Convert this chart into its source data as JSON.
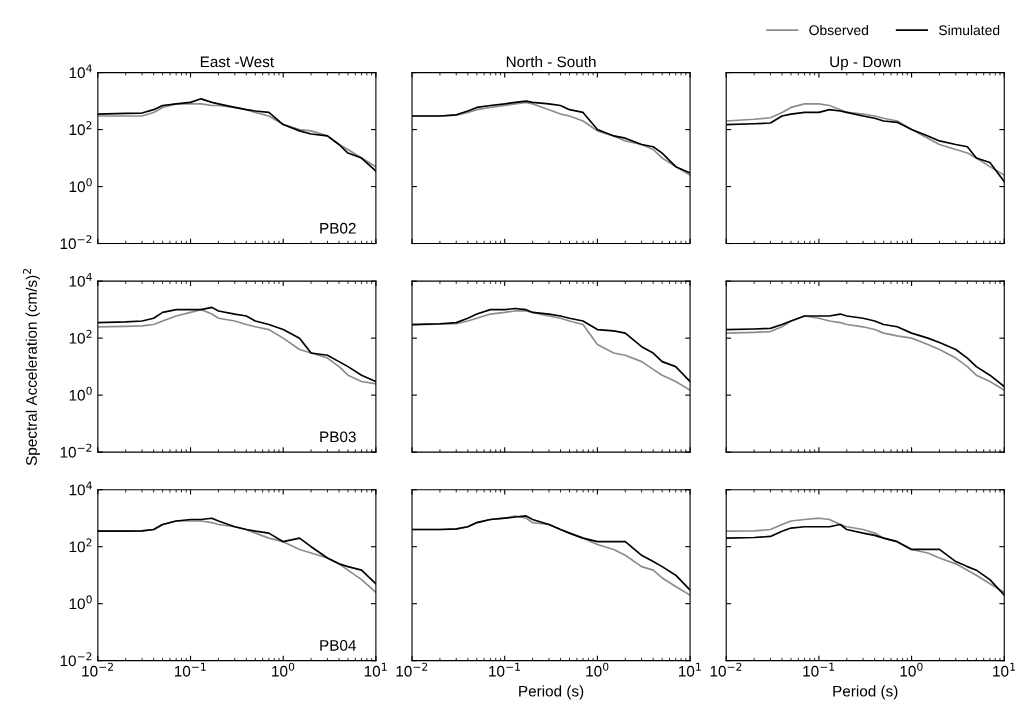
{
  "chart_data": [
    {
      "type": "line",
      "title": "East -West",
      "log": "xy",
      "x": [
        0.01,
        0.02,
        0.03,
        0.04,
        0.05,
        0.07,
        0.1,
        0.13,
        0.17,
        0.2,
        0.3,
        0.4,
        0.5,
        0.7,
        1,
        1.5,
        2,
        3,
        4,
        5,
        7,
        10
      ],
      "xlim": [
        0.01,
        10
      ],
      "ylim": [
        0.01,
        10000
      ],
      "xticks": [
        0.01,
        0.1,
        1,
        10
      ],
      "yticks": [
        {
          "value": 0.01,
          "label": "10$^{−2}$"
        },
        {
          "value": 1,
          "label": "10$^{0}$"
        },
        {
          "value": 100,
          "label": "10$^{2}$"
        },
        {
          "value": 10000,
          "label": "10$^{4}$"
        }
      ],
      "tick_labels": "y",
      "annotations": [
        "PB02"
      ],
      "series": [
        {
          "color": "#8c8c8c",
          "values": [
            300,
            300,
            300,
            400,
            600,
            800,
            800,
            800,
            700,
            700,
            600,
            500,
            400,
            300,
            150,
            100,
            90,
            60,
            30,
            20,
            10,
            5
          ]
        },
        {
          "color": "#000000",
          "values": [
            350,
            370,
            380,
            500,
            700,
            800,
            900,
            1200,
            900,
            800,
            600,
            500,
            450,
            400,
            150,
            90,
            70,
            60,
            30,
            15,
            10,
            3.5
          ]
        }
      ]
    },
    {
      "type": "line",
      "title": "North - South",
      "log": "xy",
      "x": [
        0.01,
        0.02,
        0.03,
        0.04,
        0.05,
        0.07,
        0.1,
        0.13,
        0.17,
        0.2,
        0.3,
        0.4,
        0.5,
        0.7,
        1,
        1.5,
        2,
        3,
        4,
        5,
        7,
        10
      ],
      "xlim": [
        0.01,
        10
      ],
      "ylim": [
        0.01,
        10000
      ],
      "xticks": [
        0.01,
        0.1,
        1,
        10
      ],
      "yticks": [
        0.01,
        1,
        100,
        10000
      ],
      "tick_labels": false,
      "series": [
        {
          "color": "#8c8c8c",
          "values": [
            300,
            300,
            320,
            400,
            500,
            600,
            700,
            800,
            900,
            800,
            500,
            350,
            300,
            200,
            90,
            60,
            40,
            30,
            20,
            10,
            5,
            2.5
          ]
        },
        {
          "color": "#000000",
          "values": [
            300,
            300,
            330,
            450,
            600,
            700,
            800,
            900,
            1000,
            900,
            800,
            700,
            500,
            400,
            100,
            60,
            50,
            30,
            25,
            15,
            5,
            3
          ]
        }
      ]
    },
    {
      "type": "line",
      "title": "Up - Down",
      "log": "xy",
      "legend": "top right",
      "x": [
        0.01,
        0.02,
        0.03,
        0.04,
        0.05,
        0.07,
        0.1,
        0.13,
        0.17,
        0.2,
        0.3,
        0.4,
        0.5,
        0.7,
        1,
        1.5,
        2,
        3,
        4,
        5,
        7,
        10
      ],
      "xlim": [
        0.01,
        10
      ],
      "ylim": [
        0.01,
        10000
      ],
      "xticks": [
        0.01,
        0.1,
        1,
        10
      ],
      "yticks": [
        0.01,
        1,
        100,
        10000
      ],
      "tick_labels": false,
      "series": [
        {
          "name": "Observed",
          "color": "#8c8c8c",
          "values": [
            200,
            230,
            260,
            400,
            600,
            800,
            800,
            700,
            500,
            400,
            350,
            300,
            250,
            200,
            100,
            50,
            30,
            20,
            15,
            10,
            5,
            2.5
          ]
        },
        {
          "name": "Simulated",
          "color": "#000000",
          "values": [
            150,
            160,
            170,
            300,
            350,
            400,
            400,
            500,
            450,
            400,
            300,
            250,
            200,
            180,
            100,
            60,
            40,
            30,
            25,
            10,
            7,
            1.5
          ]
        }
      ]
    },
    {
      "type": "line",
      "ylabel": "Spectral Acceleration (cm/s)$^{2}$",
      "log": "xy",
      "x": [
        0.01,
        0.02,
        0.03,
        0.04,
        0.05,
        0.07,
        0.1,
        0.13,
        0.17,
        0.2,
        0.3,
        0.4,
        0.5,
        0.7,
        1,
        1.5,
        2,
        3,
        4,
        5,
        7,
        10
      ],
      "xlim": [
        0.01,
        10
      ],
      "ylim": [
        0.01,
        10000
      ],
      "xticks": [
        0.01,
        0.1,
        1,
        10
      ],
      "yticks": [
        {
          "value": 0.01,
          "label": "10$^{−2}$"
        },
        {
          "value": 1,
          "label": "10$^{0}$"
        },
        {
          "value": 100,
          "label": "10$^{2}$"
        },
        {
          "value": 10000,
          "label": "10$^{4}$"
        }
      ],
      "tick_labels": "y",
      "annotations": [
        "PB03"
      ],
      "series": [
        {
          "color": "#8c8c8c",
          "values": [
            250,
            260,
            270,
            300,
            400,
            600,
            800,
            1000,
            700,
            500,
            400,
            300,
            250,
            200,
            100,
            40,
            30,
            20,
            10,
            5,
            3,
            2.5
          ]
        },
        {
          "color": "#000000",
          "values": [
            350,
            370,
            400,
            500,
            800,
            1000,
            1000,
            1000,
            1200,
            900,
            700,
            600,
            400,
            300,
            200,
            100,
            30,
            25,
            15,
            10,
            5,
            3
          ]
        }
      ]
    },
    {
      "type": "line",
      "log": "xy",
      "x": [
        0.01,
        0.02,
        0.03,
        0.04,
        0.05,
        0.07,
        0.1,
        0.13,
        0.17,
        0.2,
        0.3,
        0.4,
        0.5,
        0.7,
        1,
        1.5,
        2,
        3,
        4,
        5,
        7,
        10
      ],
      "xlim": [
        0.01,
        10
      ],
      "ylim": [
        0.01,
        10000
      ],
      "xticks": [
        0.01,
        0.1,
        1,
        10
      ],
      "yticks": [
        0.01,
        1,
        100,
        10000
      ],
      "tick_labels": false,
      "series": [
        {
          "color": "#8c8c8c",
          "values": [
            300,
            310,
            320,
            400,
            500,
            700,
            800,
            900,
            900,
            800,
            600,
            500,
            400,
            300,
            60,
            30,
            25,
            15,
            8,
            5,
            3,
            1.5
          ]
        },
        {
          "color": "#000000",
          "values": [
            300,
            320,
            350,
            500,
            700,
            1000,
            1000,
            1100,
            1000,
            800,
            700,
            600,
            500,
            400,
            200,
            180,
            150,
            50,
            30,
            15,
            10,
            3
          ]
        }
      ]
    },
    {
      "type": "line",
      "log": "xy",
      "x": [
        0.01,
        0.02,
        0.03,
        0.04,
        0.05,
        0.07,
        0.1,
        0.13,
        0.17,
        0.2,
        0.3,
        0.4,
        0.5,
        0.7,
        1,
        1.5,
        2,
        3,
        4,
        5,
        7,
        10
      ],
      "xlim": [
        0.01,
        10
      ],
      "ylim": [
        0.01,
        10000
      ],
      "xticks": [
        0.01,
        0.1,
        1,
        10
      ],
      "yticks": [
        0.01,
        1,
        100,
        10000
      ],
      "tick_labels": false,
      "series": [
        {
          "color": "#8c8c8c",
          "values": [
            150,
            160,
            170,
            250,
            400,
            600,
            500,
            400,
            350,
            300,
            250,
            200,
            150,
            120,
            100,
            60,
            40,
            20,
            10,
            5,
            3,
            1.5
          ]
        },
        {
          "color": "#000000",
          "values": [
            200,
            210,
            220,
            300,
            400,
            600,
            600,
            600,
            700,
            600,
            500,
            400,
            300,
            250,
            150,
            100,
            70,
            40,
            20,
            10,
            5,
            2
          ]
        }
      ]
    },
    {
      "type": "line",
      "log": "xy",
      "x": [
        0.01,
        0.02,
        0.03,
        0.04,
        0.05,
        0.07,
        0.1,
        0.13,
        0.17,
        0.2,
        0.3,
        0.4,
        0.5,
        0.7,
        1,
        1.5,
        2,
        3,
        4,
        5,
        7,
        10
      ],
      "xlim": [
        0.01,
        10
      ],
      "ylim": [
        0.01,
        10000
      ],
      "xticks": [
        {
          "value": 0.01,
          "label": "10$^{−2}$"
        },
        {
          "value": 0.1,
          "label": "10$^{−1}$"
        },
        {
          "value": 1,
          "label": "10$^{0}$"
        },
        {
          "value": 10,
          "label": "10$^{1}$"
        }
      ],
      "yticks": [
        {
          "value": 0.01,
          "label": "10$^{−2}$"
        },
        {
          "value": 1,
          "label": "10$^{0}$"
        },
        {
          "value": 100,
          "label": "10$^{2}$"
        },
        {
          "value": 10000,
          "label": "10$^{4}$"
        }
      ],
      "annotations": [
        "PB04"
      ],
      "series": [
        {
          "color": "#8c8c8c",
          "values": [
            350,
            350,
            360,
            400,
            600,
            800,
            800,
            800,
            700,
            600,
            500,
            400,
            300,
            200,
            150,
            80,
            60,
            40,
            25,
            15,
            7,
            2.5
          ]
        },
        {
          "color": "#000000",
          "values": [
            350,
            350,
            360,
            400,
            600,
            800,
            900,
            900,
            1000,
            800,
            500,
            400,
            350,
            300,
            150,
            200,
            100,
            40,
            25,
            20,
            15,
            5
          ]
        }
      ]
    },
    {
      "type": "line",
      "xlabel": "Period (s)",
      "log": "xy",
      "x": [
        0.01,
        0.02,
        0.03,
        0.04,
        0.05,
        0.07,
        0.1,
        0.13,
        0.17,
        0.2,
        0.3,
        0.4,
        0.5,
        0.7,
        1,
        1.5,
        2,
        3,
        4,
        5,
        7,
        10
      ],
      "xlim": [
        0.01,
        10
      ],
      "ylim": [
        0.01,
        10000
      ],
      "xticks": [
        {
          "value": 0.01,
          "label": "10$^{−2}$"
        },
        {
          "value": 0.1,
          "label": "10$^{−1}$"
        },
        {
          "value": 1,
          "label": "10$^{0}$"
        },
        {
          "value": 10,
          "label": "10$^{1}$"
        }
      ],
      "yticks": [
        0.01,
        1,
        100,
        10000
      ],
      "tick_labels": "x",
      "series": [
        {
          "color": "#8c8c8c",
          "values": [
            400,
            400,
            410,
            500,
            700,
            900,
            1000,
            1200,
            1000,
            700,
            600,
            400,
            300,
            200,
            120,
            80,
            50,
            20,
            15,
            8,
            4,
            2
          ]
        },
        {
          "color": "#000000",
          "values": [
            400,
            400,
            420,
            500,
            700,
            900,
            1000,
            1100,
            1200,
            900,
            600,
            400,
            300,
            200,
            150,
            150,
            150,
            50,
            30,
            20,
            10,
            3
          ]
        }
      ]
    },
    {
      "type": "line",
      "xlabel": "Period (s)",
      "log": "xy",
      "x": [
        0.01,
        0.02,
        0.03,
        0.04,
        0.05,
        0.07,
        0.1,
        0.13,
        0.17,
        0.2,
        0.3,
        0.4,
        0.5,
        0.7,
        1,
        1.5,
        2,
        3,
        4,
        5,
        7,
        10
      ],
      "xlim": [
        0.01,
        10
      ],
      "ylim": [
        0.01,
        10000
      ],
      "xticks": [
        {
          "value": 0.01,
          "label": "10$^{−2}$"
        },
        {
          "value": 0.1,
          "label": "10$^{−1}$"
        },
        {
          "value": 1,
          "label": "10$^{0}$"
        },
        {
          "value": 10,
          "label": "10$^{1}$"
        }
      ],
      "yticks": [
        0.01,
        1,
        100,
        10000
      ],
      "tick_labels": "x",
      "series": [
        {
          "color": "#8c8c8c",
          "values": [
            350,
            360,
            400,
            600,
            800,
            900,
            1000,
            900,
            600,
            500,
            400,
            300,
            200,
            150,
            80,
            60,
            40,
            25,
            15,
            10,
            5,
            2.5
          ]
        },
        {
          "color": "#000000",
          "values": [
            200,
            210,
            230,
            350,
            450,
            500,
            500,
            500,
            600,
            400,
            300,
            250,
            200,
            150,
            80,
            80,
            80,
            30,
            20,
            15,
            7,
            2
          ]
        }
      ]
    }
  ]
}
